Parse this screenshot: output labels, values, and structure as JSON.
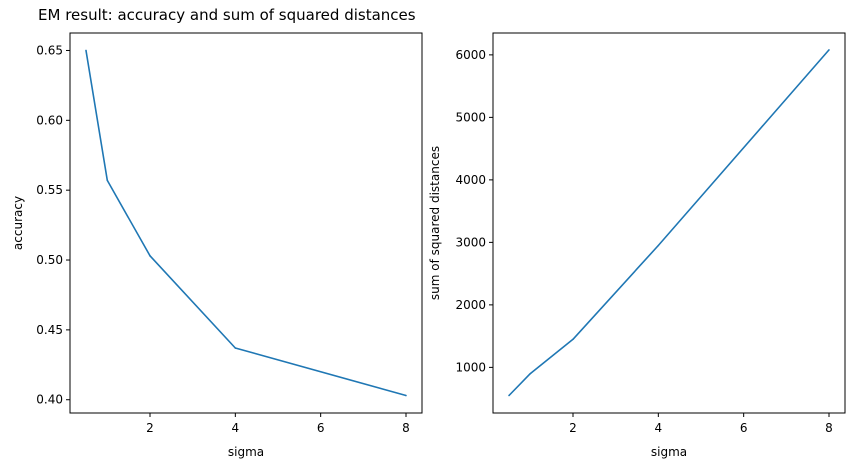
{
  "figure": {
    "title": "EM result: accuracy and sum of squared distances"
  },
  "chart_data": [
    {
      "type": "line",
      "title": "",
      "xlabel": "sigma",
      "ylabel": "accuracy",
      "xlim": [
        0.125,
        8.375
      ],
      "ylim": [
        0.3905,
        0.6625
      ],
      "xticks": [
        2,
        4,
        6,
        8
      ],
      "yticks": [
        0.4,
        0.45,
        0.5,
        0.55,
        0.6,
        0.65
      ],
      "ytick_labels": [
        "0.40",
        "0.45",
        "0.50",
        "0.55",
        "0.60",
        "0.65"
      ],
      "grid": false,
      "legend": "none",
      "series": [
        {
          "color": "#1f77b4",
          "x": [
            0.5,
            1,
            2,
            4,
            8
          ],
          "y": [
            0.65,
            0.557,
            0.503,
            0.437,
            0.403
          ]
        }
      ]
    },
    {
      "type": "line",
      "title": "",
      "xlabel": "sigma",
      "ylabel": "sum of squared distances",
      "xlim": [
        0.125,
        8.375
      ],
      "ylim": [
        270,
        6350
      ],
      "xticks": [
        2,
        4,
        6,
        8
      ],
      "yticks": [
        1000,
        2000,
        3000,
        4000,
        5000,
        6000
      ],
      "ytick_labels": [
        "1000",
        "2000",
        "3000",
        "4000",
        "5000",
        "6000"
      ],
      "grid": false,
      "legend": "none",
      "series": [
        {
          "color": "#1f77b4",
          "x": [
            0.5,
            1,
            2,
            4,
            8
          ],
          "y": [
            550,
            900,
            1450,
            2950,
            6080
          ]
        }
      ]
    }
  ]
}
